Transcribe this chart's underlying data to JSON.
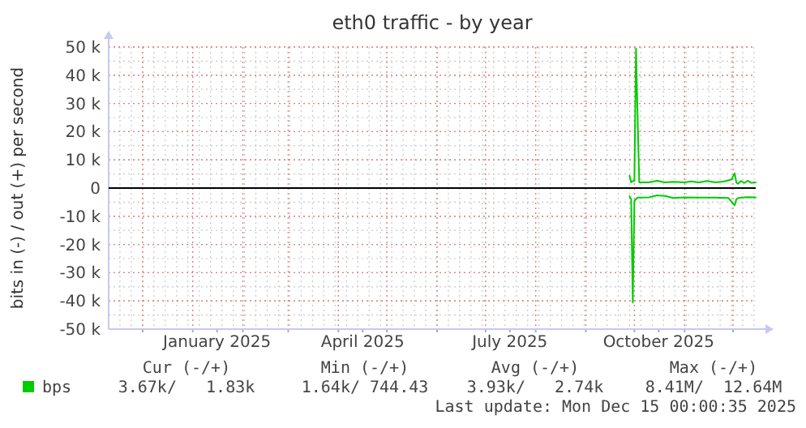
{
  "chart_data": {
    "type": "line",
    "title": "eth0 traffic - by year",
    "ylabel": "bits in (-) / out (+) per second",
    "xlim": [
      "2024-11-10",
      "2025-12-15"
    ],
    "xticks": [
      {
        "value": "2024-12-01",
        "label": null
      },
      {
        "value": "2025-01-01",
        "label": null
      },
      {
        "value": "2025-01-16",
        "label": "January 2025"
      },
      {
        "value": "2025-02-01",
        "label": null
      },
      {
        "value": "2025-03-01",
        "label": null
      },
      {
        "value": "2025-04-01",
        "label": null
      },
      {
        "value": "2025-04-16",
        "label": "April 2025"
      },
      {
        "value": "2025-05-01",
        "label": null
      },
      {
        "value": "2025-06-01",
        "label": null
      },
      {
        "value": "2025-07-01",
        "label": null
      },
      {
        "value": "2025-07-16",
        "label": "July 2025"
      },
      {
        "value": "2025-08-01",
        "label": null
      },
      {
        "value": "2025-09-01",
        "label": null
      },
      {
        "value": "2025-10-01",
        "label": null
      },
      {
        "value": "2025-10-16",
        "label": "October 2025"
      },
      {
        "value": "2025-11-01",
        "label": null
      },
      {
        "value": "2025-12-01",
        "label": null
      }
    ],
    "ylim": [
      -50000,
      50000
    ],
    "yticks": [
      {
        "value": 50000,
        "label": "50 k"
      },
      {
        "value": 40000,
        "label": "40 k"
      },
      {
        "value": 30000,
        "label": "30 k"
      },
      {
        "value": 20000,
        "label": "20 k"
      },
      {
        "value": 10000,
        "label": "10 k"
      },
      0,
      {
        "value": -10000,
        "label": "-10 k"
      },
      {
        "value": -20000,
        "label": "-20 k"
      },
      {
        "value": -30000,
        "label": "-30 k"
      },
      {
        "value": -40000,
        "label": "-40 k"
      },
      {
        "value": -50000,
        "label": "-50 k"
      }
    ],
    "grid": true,
    "legend": "bottom",
    "marker": "none",
    "line_style": "solid",
    "ref_lines": [
      {
        "axis": "y",
        "value": 0,
        "color": "#000000"
      }
    ],
    "series": [
      {
        "name": "bps",
        "color": "#00cc00",
        "x": [
          "2025-09-28",
          "2025-09-29",
          "2025-09-30",
          "2025-10-01",
          "2025-10-02",
          "2025-10-03",
          "2025-10-04",
          "2025-10-10",
          "2025-10-15",
          "2025-10-20",
          "2025-10-25",
          "2025-11-01",
          "2025-11-05",
          "2025-11-10",
          "2025-11-15",
          "2025-11-20",
          "2025-11-25",
          "2025-11-30",
          "2025-12-02",
          "2025-12-03",
          "2025-12-04",
          "2025-12-06",
          "2025-12-08",
          "2025-12-10",
          "2025-12-12",
          "2025-12-15"
        ],
        "values": [
          4400,
          2000,
          2500,
          2500,
          49400,
          25000,
          2000,
          2000,
          2600,
          2000,
          2200,
          2000,
          2400,
          2000,
          2500,
          2000,
          2300,
          3000,
          5200,
          2000,
          1500,
          2500,
          1800,
          2600,
          1900,
          2000
        ]
      },
      {
        "color": "#00cc00",
        "x": [
          "2025-09-28",
          "2025-09-29",
          "2025-09-30",
          "2025-10-01",
          "2025-10-03",
          "2025-10-10",
          "2025-10-15",
          "2025-10-20",
          "2025-10-25",
          "2025-11-01",
          "2025-11-10",
          "2025-11-20",
          "2025-11-28",
          "2025-12-02",
          "2025-12-03",
          "2025-12-04",
          "2025-12-06",
          "2025-12-10",
          "2025-12-15"
        ],
        "values": [
          -2900,
          -4000,
          -40600,
          -4500,
          -3400,
          -3300,
          -2600,
          -2800,
          -3500,
          -3300,
          -3400,
          -3400,
          -3500,
          -6100,
          -4000,
          -3600,
          -3400,
          -3200,
          -3300
        ]
      }
    ],
    "annotations": [
      "Cur (-/+)",
      "Min (-/+)",
      "Avg (-/+)",
      "Max (-/+)",
      "3.67k/   1.83k",
      "1.64k/ 744.43",
      "3.93k/   2.74k",
      "8.41M/  12.64M",
      "Last update: Mon Dec 15 00:00:35 2025"
    ]
  }
}
